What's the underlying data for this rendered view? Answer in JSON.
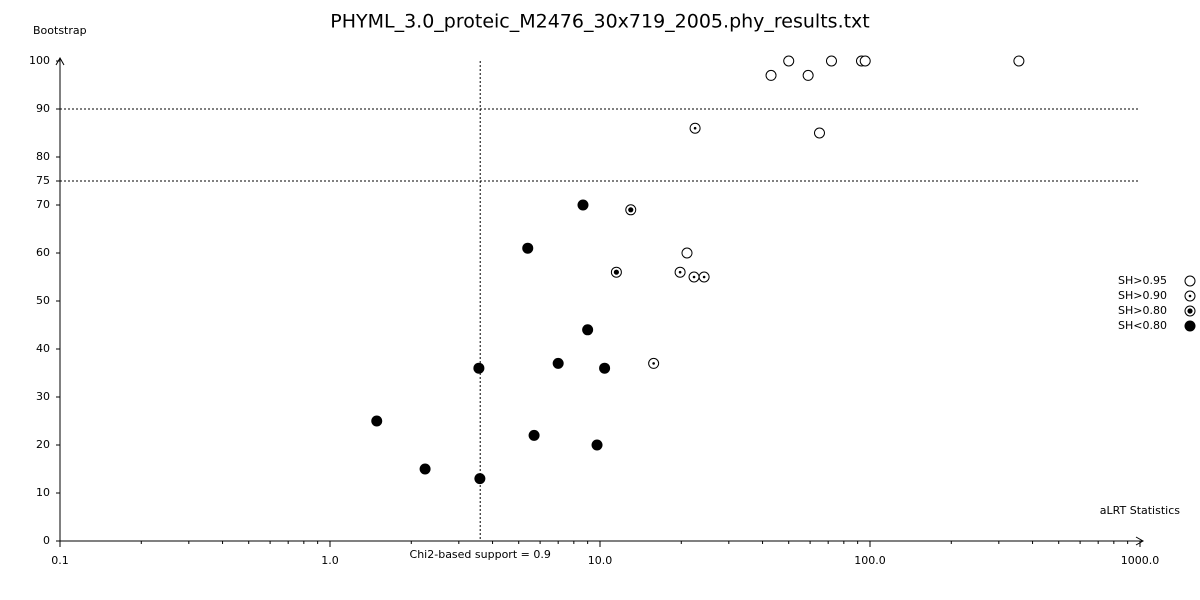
{
  "chart_data": {
    "type": "scatter",
    "title": "PHYML_3.0_proteic_M2476_30x719_2005.phy_results.txt",
    "x_label": "aLRT Statistics",
    "y_label": "Bootstrap",
    "xscale": "log",
    "xlim": [
      0.1,
      1000
    ],
    "ylim": [
      0,
      100
    ],
    "xticks": [
      0.1,
      {
        "value": 1,
        "label": "1.0"
      },
      {
        "value": 10,
        "label": "10.0"
      },
      {
        "value": 100,
        "label": "100.0"
      },
      {
        "value": 1000,
        "label": "1000.0"
      }
    ],
    "yticks": [
      0,
      10,
      20,
      30,
      40,
      50,
      60,
      70,
      75,
      80,
      90,
      100
    ],
    "hlines": [
      90,
      75
    ],
    "vline": {
      "value": 3.6,
      "label": "Chi2-based support = 0.9"
    },
    "legend": "right",
    "series": [
      {
        "name": "SH>0.95",
        "color": "#000000",
        "marker": "open",
        "x": [
          50,
          43,
          59,
          72,
          93,
          96,
          356,
          65,
          21
        ],
        "values": [
          100,
          97,
          97,
          100,
          100,
          100,
          100,
          85,
          60
        ]
      },
      {
        "name": "SH>0.90",
        "color": "#000000",
        "marker": "dot",
        "x": [
          22.5,
          19.8,
          22.3,
          24.3,
          15.8
        ],
        "values": [
          86,
          56,
          55,
          55,
          37
        ]
      },
      {
        "name": "SH>0.80",
        "color": "#000000",
        "marker": "bullseye",
        "x": [
          13,
          11.5
        ],
        "values": [
          69,
          56
        ]
      },
      {
        "name": "SH<0.80",
        "color": "#000000",
        "marker": "filled",
        "x": [
          8.65,
          5.4,
          9.0,
          7.0,
          10.4,
          3.56,
          1.49,
          5.7,
          9.75,
          2.25,
          3.59
        ],
        "values": [
          70,
          61,
          44,
          37,
          36,
          36,
          25,
          22,
          20,
          15,
          13
        ]
      }
    ]
  }
}
